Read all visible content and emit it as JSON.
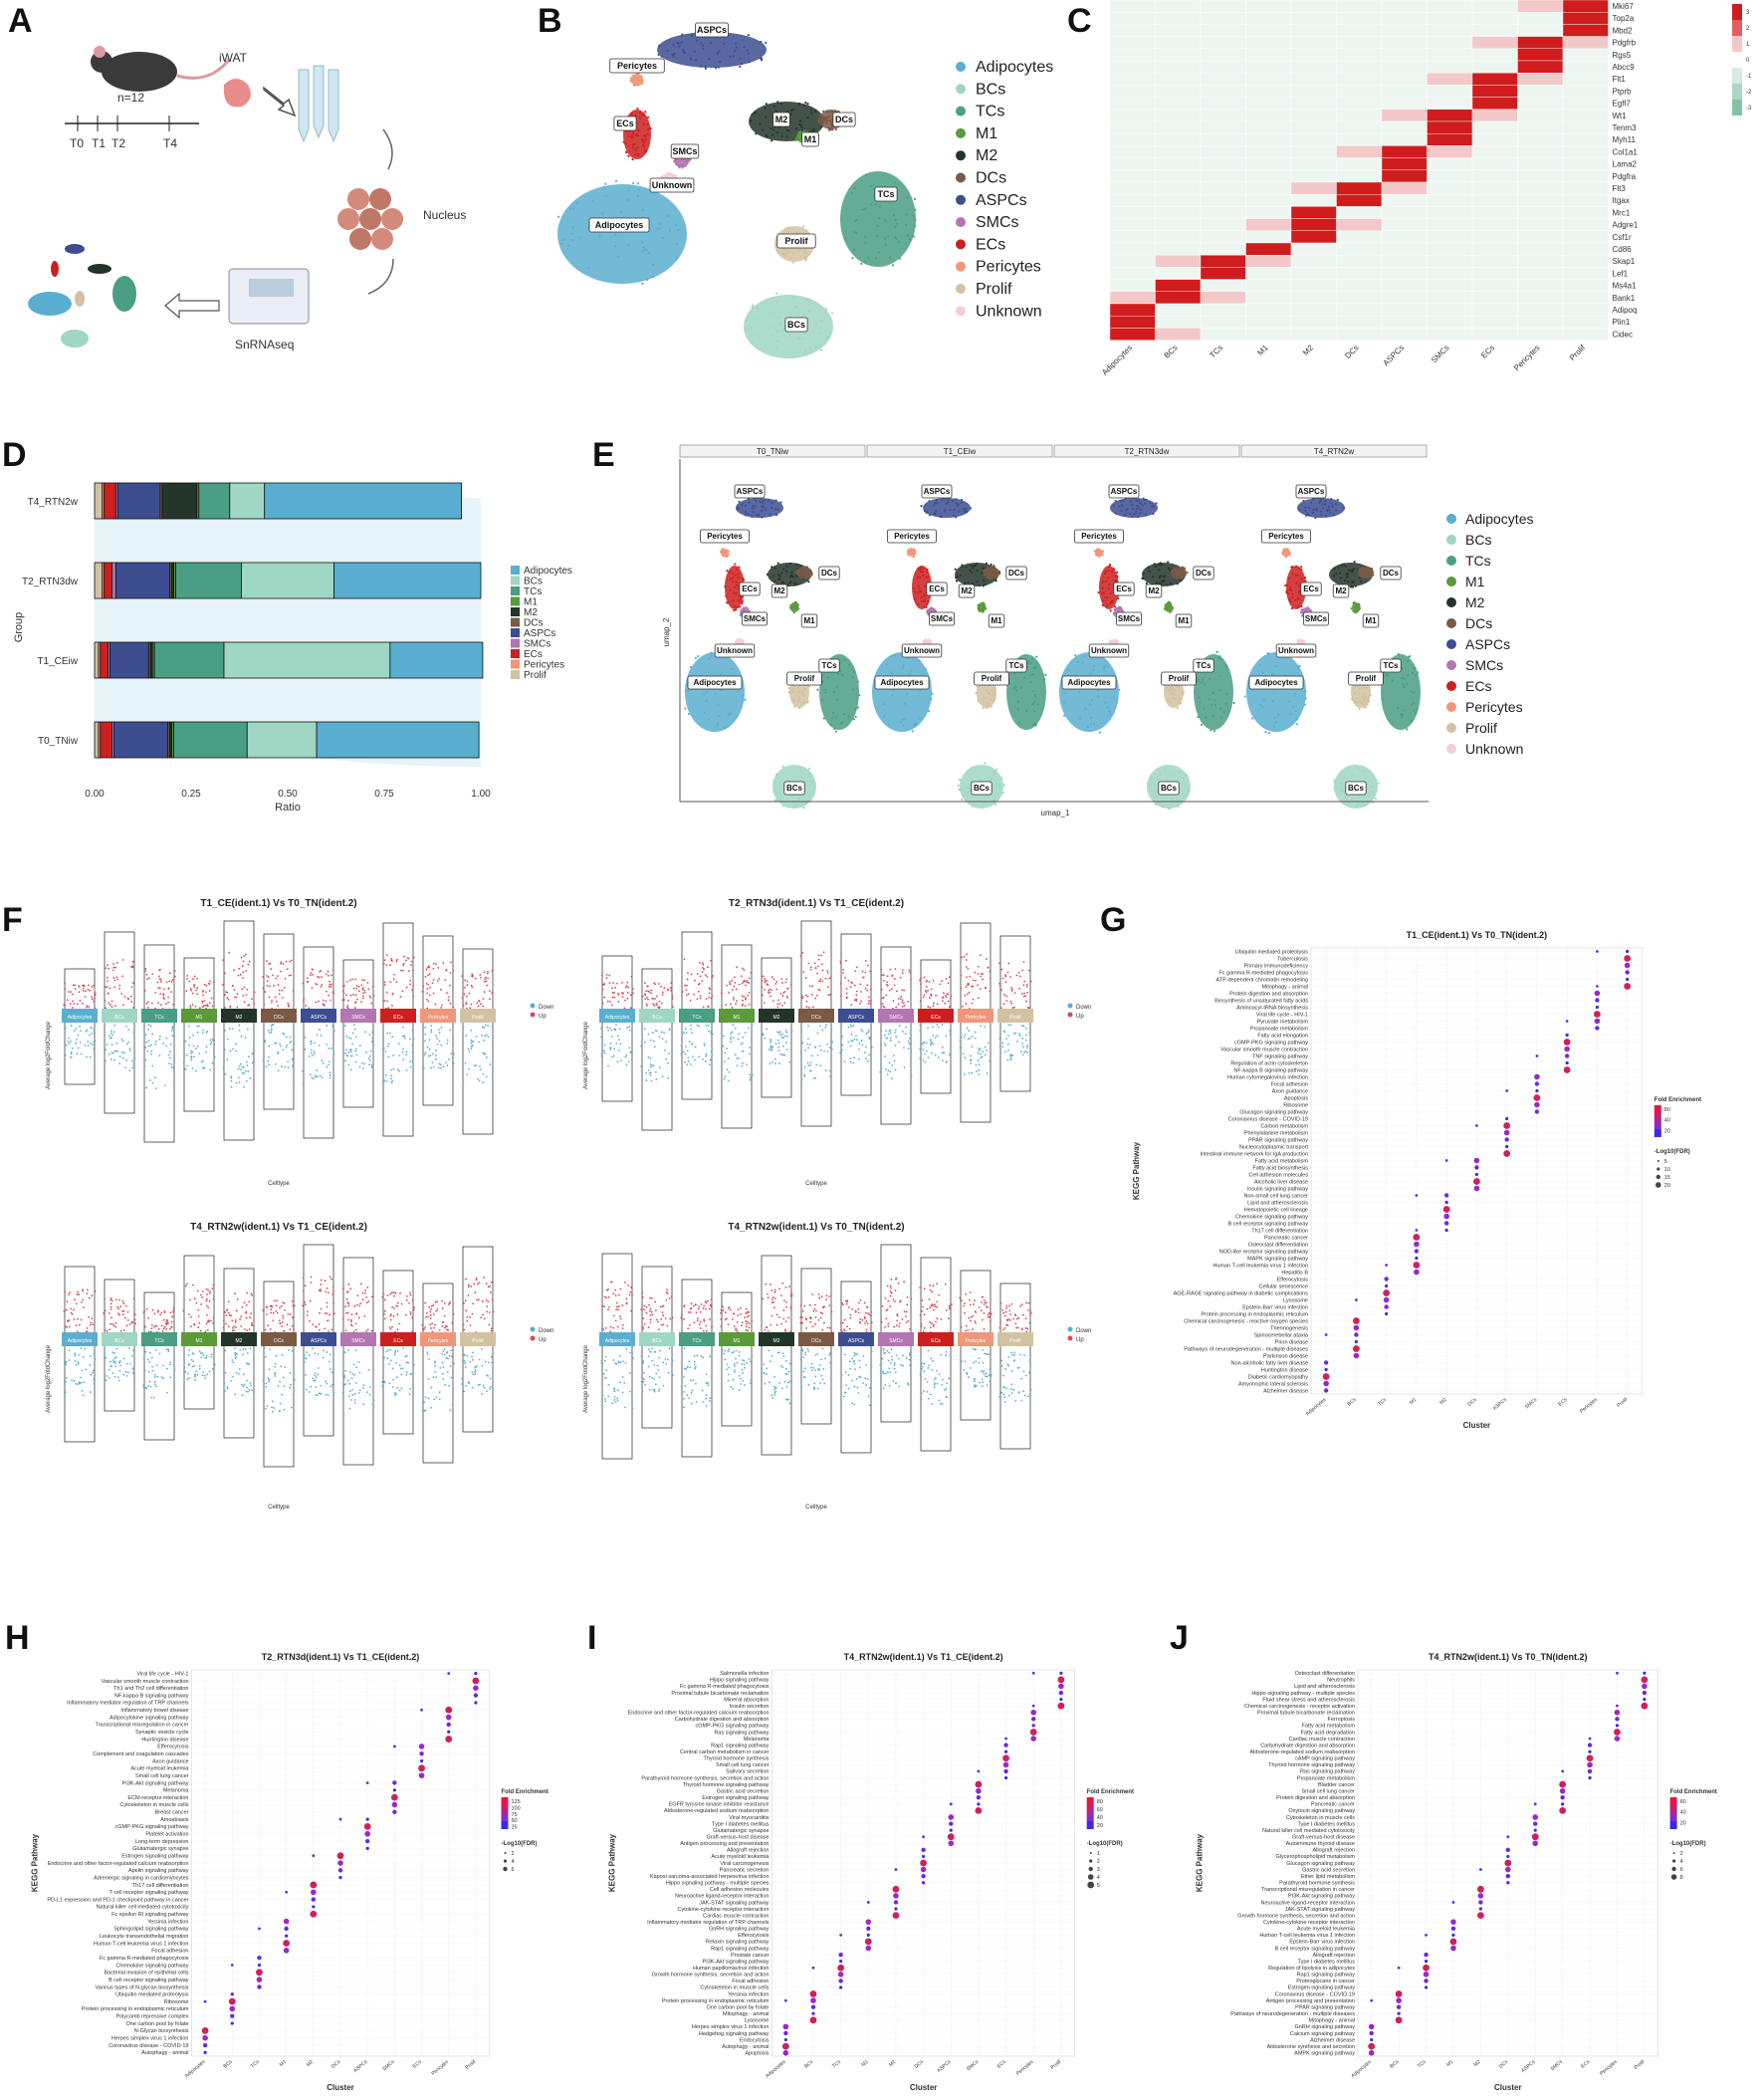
{
  "labels": {
    "A": "A",
    "B": "B",
    "C": "C",
    "D": "D",
    "E": "E",
    "F": "F",
    "G": "G",
    "H": "H",
    "I": "I",
    "J": "J"
  },
  "colors": {
    "Adipocytes": "#5aaed0",
    "BCs": "#9fd6c4",
    "TCs": "#4a9e84",
    "M1": "#5a9a3a",
    "M2": "#233529",
    "DCs": "#7a5a45",
    "ASPCs": "#3c4e90",
    "SMCs": "#b276b2",
    "ECs": "#cc1f1f",
    "Pericytes": "#f0967a",
    "Prolif": "#d2c2a2",
    "Unknown": "#f2cfd6",
    "up": "#d44a5a",
    "down": "#5aaed0"
  },
  "panelA": {
    "iwat": "iWAT",
    "n": "n=12",
    "t0": "T0",
    "t1": "T1",
    "t2": "T2",
    "t4": "T4",
    "nucleus": "Nucleus",
    "snrna": "SnRNAseq"
  },
  "cellTypes": [
    "Adipocytes",
    "BCs",
    "TCs",
    "M1",
    "M2",
    "DCs",
    "ASPCs",
    "SMCs",
    "ECs",
    "Pericytes",
    "Prolif",
    "Unknown"
  ],
  "panelB": {
    "clusterLabels": [
      "ASPCs",
      "Pericytes",
      "ECs",
      "SMCs",
      "M2",
      "M1",
      "DCs",
      "Unknown",
      "Adipocytes",
      "TCs",
      "Prolif",
      "BCs"
    ]
  },
  "panelC": {
    "genes": [
      "Mki67",
      "Top2a",
      "Mbd2",
      "Pdgfrb",
      "Rgs5",
      "Abcc9",
      "Flt1",
      "Ptprb",
      "Egfl7",
      "Wt1",
      "Tenm3",
      "Myh11",
      "Col1a1",
      "Lama2",
      "Pdgfra",
      "Flt3",
      "Itgax",
      "Mrc1",
      "Adgre1",
      "Csf1r",
      "Cd86",
      "Skap1",
      "Lef1",
      "Ms4a1",
      "Bank1",
      "Adipoq",
      "Plin1",
      "Cidec"
    ],
    "columns": [
      "Adipocytes",
      "BCs",
      "TCs",
      "M1",
      "M2",
      "DCs",
      "ASPCs",
      "SMCs",
      "ECs",
      "Pericytes",
      "Prolif"
    ],
    "scale": [
      "3",
      "2",
      "1",
      "0",
      "-1",
      "-2",
      "-3"
    ]
  },
  "panelD": {
    "groups": [
      "T4_RTN2w",
      "T2_RTN3dw",
      "T1_CEiw",
      "T0_TNiw"
    ],
    "ylabel": "Group",
    "xlabel": "Ratio",
    "ticks": [
      "0.00",
      "0.25",
      "0.50",
      "0.75",
      "1.00"
    ],
    "legend": [
      "Adipocytes",
      "BCs",
      "TCs",
      "M1",
      "M2",
      "DCs",
      "ASPCs",
      "SMCs",
      "ECs",
      "Pericytes",
      "Prolif"
    ]
  },
  "panelE": {
    "facets": [
      "T0_TNiw",
      "T1_CEiw",
      "T2_RTN3dw",
      "T4_RTN2w"
    ],
    "xlabel": "umap_1",
    "ylabel": "umap_2",
    "clusterLabels": [
      "ASPCs",
      "Pericytes",
      "ECs",
      "M2",
      "DCs",
      "SMCs",
      "M1",
      "Unknown",
      "Adipocytes",
      "Prolif",
      "TCs",
      "BCs"
    ]
  },
  "panelF": {
    "titles": [
      "T1_CE(ident.1) Vs T0_TN(ident.2)",
      "T2_RTN3d(ident.1) Vs T1_CE(ident.2)",
      "T4_RTN2w(ident.1) Vs T1_CE(ident.2)",
      "T4_RTN2w(ident.1) Vs T0_TN(ident.2)"
    ],
    "ylabel": "Average log2FoldChange",
    "xlabel": "Celltype",
    "strip": [
      "Adipocytes",
      "BCs",
      "TCs",
      "M1",
      "M2",
      "DCs",
      "ASPCs",
      "SMCs",
      "ECs",
      "Pericytes",
      "Prolif"
    ],
    "legend": [
      "Down",
      "Up"
    ]
  },
  "panelG": {
    "title": "T1_CE(ident.1) Vs T0_TN(ident.2)",
    "ylabel": "KEGG Pathway",
    "xlabel": "Cluster",
    "clusters": [
      "Adipocytes",
      "BCs",
      "TCs",
      "M1",
      "M2",
      "DCs",
      "ASPCs",
      "SMCs",
      "ECs",
      "Pericytes",
      "Prolif"
    ],
    "pathways": [
      "Ubiquitin mediated proteolysis",
      "Tuberculosis",
      "Primary immunodeficiency",
      "Fc gamma R-mediated phagocytosis",
      "ATP-dependent chromatin remodeling",
      "Mitophagy - animal",
      "Protein digestion and absorption",
      "Biosynthesis of unsaturated fatty acids",
      "Aminoacyl-tRNA biosynthesis",
      "Viral life cycle - HIV-1",
      "Pyruvate metabolism",
      "Propanoate metabolism",
      "Fatty acid elongation",
      "cGMP-PKG signaling pathway",
      "Vascular smooth muscle contraction",
      "TNF signaling pathway",
      "Regulation of actin cytoskeleton",
      "NF-kappa B signaling pathway",
      "Human cytomegalovirus infection",
      "Focal adhesion",
      "Axon guidance",
      "Apoptosis",
      "Ribosome",
      "Glucagon signaling pathway",
      "Coronavirus disease - COVID-19",
      "Carbon metabolism",
      "Phenylalanine metabolism",
      "PPAR signaling pathway",
      "Nucleocytoplasmic transport",
      "Intestinal immune network for IgA production",
      "Fatty acid metabolism",
      "Fatty acid biosynthesis",
      "Cell adhesion molecules",
      "Alcoholic liver disease",
      "Insulin signaling pathway",
      "Non-small cell lung cancer",
      "Lipid and atherosclerosis",
      "Hematopoietic cell lineage",
      "Chemokine signaling pathway",
      "B cell receptor signaling pathway",
      "Th17 cell differentiation",
      "Pancreatic cancer",
      "Osteoclast differentiation",
      "NOD-like receptor signaling pathway",
      "MAPK signaling pathway",
      "Human T-cell leukemia virus 1 infection",
      "Hepatitis B",
      "Efferocytosis",
      "Cellular senescence",
      "AGE-RAGE signaling pathway in diabetic complications",
      "Lysosome",
      "Epstein-Barr virus infection",
      "Protein processing in endoplasmic reticulum",
      "Chemical carcinogenesis - reactive oxygen species",
      "Thermogenesis",
      "Spinocerebellar ataxia",
      "Prion disease",
      "Pathways of neurodegeneration - multiple diseases",
      "Parkinson disease",
      "Non-alcoholic fatty liver disease",
      "Huntington disease",
      "Diabetic cardiomyopathy",
      "Amyotrophic lateral sclerosis",
      "Alzheimer disease"
    ],
    "legendFE": "Fold Enrichment",
    "feTicks": [
      "80",
      "40",
      "20"
    ],
    "legendFDR": "-Log10(FDR)",
    "fdrTicks": [
      "5",
      "10",
      "15",
      "20"
    ]
  },
  "panelH": {
    "title": "T2_RTN3d(ident.1) Vs T1_CE(ident.2)",
    "ylabel": "KEGG Pathway",
    "xlabel": "Cluster",
    "pathways": [
      "Viral life cycle - HIV-1",
      "Vascular smooth muscle contraction",
      "Th1 and Th2 cell differentiation",
      "NF-kappa B signaling pathway",
      "Inflammatory mediator regulation of TRP channels",
      "Inflammatory bowel disease",
      "Adipocytokine signaling pathway",
      "Transcriptional misregulation in cancer",
      "Synaptic vesicle cycle",
      "Huntington disease",
      "Efferocytosis",
      "Complement and coagulation cascades",
      "Axon guidance",
      "Acute myeloid leukemia",
      "Small cell lung cancer",
      "PI3K-Akt signaling pathway",
      "Melanoma",
      "ECM-receptor interaction",
      "Cytoskeleton in muscle cells",
      "Breast cancer",
      "Amoebiasis",
      "cGMP-PKG signaling pathway",
      "Platelet activation",
      "Long-term depression",
      "Glutamatergic synapse",
      "Estrogen signaling pathway",
      "Endocrine and other factor-regulated calcium reabsorption",
      "Apelin signaling pathway",
      "Adrenergic signaling in cardiomyocytes",
      "Th17 cell differentiation",
      "T cell receptor signaling pathway",
      "PD-L1 expression and PD-1 checkpoint pathway in cancer",
      "Natural killer cell mediated cytotoxicity",
      "Fc epsilon RI signaling pathway",
      "Yersinia infection",
      "Sphingolipid signaling pathway",
      "Leukocyte transendothelial migration",
      "Human T-cell leukemia virus 1 infection",
      "Focal adhesion",
      "Fc gamma R-mediated phagocytosis",
      "Chemokine signaling pathway",
      "Bacterial invasion of epithelial cells",
      "B cell receptor signaling pathway",
      "Various types of N-glycan biosynthesis",
      "Ubiquitin mediated proteolysis",
      "Ribosome",
      "Protein processing in endoplasmic reticulum",
      "Polycomb repressive complex",
      "One carbon pool by folate",
      "N-Glycan biosynthesis",
      "Herpes simplex virus 1 infection",
      "Coronavirus disease - COVID-19",
      "Autophagy - animal"
    ],
    "legendFE": "Fold Enrichment",
    "feTicks": [
      "125",
      "100",
      "75",
      "50",
      "25"
    ],
    "legendFDR": "-Log10(FDR)",
    "fdrTicks": [
      "2",
      "4",
      "6"
    ]
  },
  "panelI": {
    "title": "T4_RTN2w(ident.1) Vs T1_CE(ident.2)",
    "ylabel": "KEGG Pathway",
    "xlabel": "Cluster",
    "pathways": [
      "Salmonella infection",
      "Hippo signaling pathway",
      "Fc gamma R-mediated phagocytosis",
      "Proximal tubule bicarbonate reclamation",
      "Mineral absorption",
      "Insulin secretion",
      "Endocrine and other factor-regulated calcium reabsorption",
      "Carbohydrate digestion and absorption",
      "cGMP-PKG signaling pathway",
      "Ras signaling pathway",
      "Melanoma",
      "Rap1 signaling pathway",
      "Central carbon metabolism in cancer",
      "Thyroid hormone synthesis",
      "Small cell lung cancer",
      "Salivary secretion",
      "Parathyroid hormone synthesis, secretion and action",
      "Thyroid hormone signaling pathway",
      "Gastric acid secretion",
      "Estrogen signaling pathway",
      "EGFR tyrosine kinase inhibitor resistance",
      "Aldosterone-regulated sodium reabsorption",
      "Viral myocarditis",
      "Type I diabetes mellitus",
      "Glutamatergic synapse",
      "Graft-versus-host disease",
      "Antigen processing and presentation",
      "Allograft rejection",
      "Acute myeloid leukemia",
      "Viral carcinogenesis",
      "Pancreatic secretion",
      "Kaposi sarcoma-associated herpesvirus infection",
      "Hippo signaling pathway - multiple species",
      "Cell adhesion molecules",
      "Neuroactive ligand-receptor interaction",
      "JAK-STAT signaling pathway",
      "Cytokine-cytokine receptor interaction",
      "Cardiac muscle contraction",
      "Inflammatory mediator regulation of TRP channels",
      "GnRH signaling pathway",
      "Efferocytosis",
      "Relaxin signaling pathway",
      "Rap1 signaling pathway",
      "Prostate cancer",
      "PI3K-Akt signaling pathway",
      "Human papillomavirus infection",
      "Growth hormone synthesis, secretion and action",
      "Focal adhesion",
      "Cytoskeleton in muscle cells",
      "Yersinia infection",
      "Protein processing in endoplasmic reticulum",
      "One carbon pool by folate",
      "Mitophagy - animal",
      "Lysosome",
      "Herpes simplex virus 1 infection",
      "Hedgehog signaling pathway",
      "Endocytosis",
      "Autophagy - animal",
      "Apoptosis"
    ],
    "legendFDR": "-Log10(FDR)",
    "fdrTicks": [
      "1",
      "2",
      "3",
      "4",
      "5"
    ],
    "legendFE": "Fold Enrichment",
    "feTicks": [
      "80",
      "60",
      "40",
      "20"
    ]
  },
  "panelJ": {
    "title": "T4_RTN2w(ident.1) Vs T0_TN(ident.2)",
    "ylabel": "KEGG Pathway",
    "xlabel": "Cluster",
    "pathways": [
      "Osteoclast differentiation",
      "Neutrophils",
      "Lipid and atherosclerosis",
      "Hippo signaling pathway - multiple species",
      "Fluid shear stress and atherosclerosis",
      "Chemical carcinogenesis - receptor activation",
      "Proximal tubule bicarbonate reclamation",
      "Ferroptosis",
      "Fatty acid metabolism",
      "Fatty acid degradation",
      "Cardiac muscle contraction",
      "Carbohydrate digestion and absorption",
      "Aldosterone-regulated sodium reabsorption",
      "cAMP signaling pathway",
      "Thyroid hormone signaling pathway",
      "Ras signaling pathway",
      "Propanoate metabolism",
      "Bladder cancer",
      "Small cell lung cancer",
      "Protein digestion and absorption",
      "Pancreatic cancer",
      "Oxytocin signaling pathway",
      "Cytoskeleton in muscle cells",
      "Type I diabetes mellitus",
      "Natural killer cell mediated cytotoxicity",
      "Graft-versus-host disease",
      "Autoimmune thyroid disease",
      "Allograft rejection",
      "Glycerophospholipid metabolism",
      "Glucagon signaling pathway",
      "Gastric acid secretion",
      "Ether lipid metabolism",
      "Parathyroid hormone synthesis",
      "Transcriptional misregulation in cancer",
      "PI3K-Akt signaling pathway",
      "Neuroactive ligand-receptor interaction",
      "JAK-STAT signaling pathway",
      "Growth hormone synthesis, secretion and action",
      "Cytokine-cytokine receptor interaction",
      "Acute myeloid leukemia",
      "Human T-cell leukemia virus 1 infection",
      "Epstein-Barr virus infection",
      "B cell receptor signaling pathway",
      "Allograft rejection",
      "Type I diabetes mellitus",
      "Regulation of lipolysis in adipocytes",
      "Rap1 signaling pathway",
      "Proteoglycans in cancer",
      "Estrogen signaling pathway",
      "Coronavirus disease - COVID-19",
      "Antigen processing and presentation",
      "PPAR signaling pathway",
      "Pathways of neurodegeneration - multiple diseases",
      "Mitophagy - animal",
      "GnRH signaling pathway",
      "Calcium signaling pathway",
      "Alzheimer disease",
      "Aldosterone synthesis and secretion",
      "AMPK signaling pathway"
    ],
    "legendFE": "Fold Enrichment",
    "feTicks": [
      "60",
      "40",
      "20"
    ],
    "legendFDR": "-Log10(FDR)",
    "fdrTicks": [
      "2",
      "4",
      "6",
      "8"
    ]
  }
}
